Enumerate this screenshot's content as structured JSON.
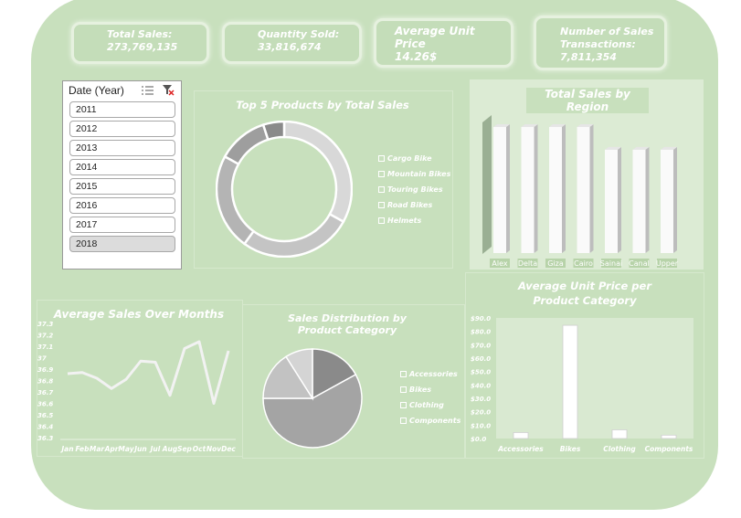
{
  "kpis": [
    {
      "label": "Total Sales:",
      "value": "273,769,135"
    },
    {
      "label": "Quantity Sold:",
      "value": "33,816,674"
    },
    {
      "label": "Average Unit Price",
      "value": "14.26$"
    },
    {
      "label": "Number of Sales Transactions:",
      "value": "7,811,354"
    }
  ],
  "slicer": {
    "title": "Date (Year)",
    "items": [
      "2011",
      "2012",
      "2013",
      "2014",
      "2015",
      "2016",
      "2017",
      "2018"
    ],
    "selected": "2018"
  },
  "charts": {
    "top5": {
      "title": "Top 5  Products by Total Sales",
      "legend": [
        "Cargo Bike",
        "Mountain Bikes",
        "Touring Bikes",
        "Road Bikes",
        "Helmets"
      ]
    },
    "region": {
      "title": "Total Sales by Region",
      "categories": [
        "Alex",
        "Delta",
        "Giza",
        "Cairo",
        "Sainai",
        "Canal",
        "Upper"
      ]
    },
    "months": {
      "title": "Average Sales Over Months",
      "yticks": [
        "37.3",
        "37.2",
        "37.1",
        "37",
        "36.9",
        "36.8",
        "36.7",
        "36.6",
        "36.5",
        "36.4",
        "36.3"
      ],
      "categories": [
        "Jan",
        "Feb",
        "Mar",
        "Apr",
        "May",
        "Jun",
        "Jul",
        "Aug",
        "Sep",
        "Oct",
        "Nov",
        "Dec"
      ]
    },
    "dist": {
      "title": "Sales Distribution by Product Category",
      "legend": [
        "Accessories",
        "Bikes",
        "Clothing",
        "Components"
      ]
    },
    "unitprice": {
      "title": "Average Unit Price per Product Category",
      "yticks": [
        "$90.0",
        "$80.0",
        "$70.0",
        "$60.0",
        "$50.0",
        "$40.0",
        "$30.0",
        "$20.0",
        "$10.0",
        "$0.0"
      ],
      "categories": [
        "Accessories",
        "Bikes",
        "Clothing",
        "Components"
      ]
    }
  },
  "chart_data": [
    {
      "type": "pie",
      "categories": [
        "Cargo Bike",
        "Mountain Bikes",
        "Touring Bikes",
        "Road Bikes",
        "Helmets"
      ],
      "values": [
        33,
        27,
        23,
        12,
        5
      ],
      "colors": [
        "#d8d8d8",
        "#c4c4c4",
        "#b4b4b4",
        "#9e9e9e",
        "#8a8a8a"
      ]
    },
    {
      "type": "bar",
      "categories": [
        "Alex",
        "Delta",
        "Giza",
        "Cairo",
        "Sainai",
        "Canal",
        "Upper"
      ],
      "values": [
        100,
        100,
        100,
        100,
        82,
        82,
        82
      ],
      "ylim": [
        0,
        100
      ]
    },
    {
      "type": "line",
      "categories": [
        "Jan",
        "Feb",
        "Mar",
        "Apr",
        "May",
        "Jun",
        "Jul",
        "Aug",
        "Sep",
        "Oct",
        "Nov",
        "Dec"
      ],
      "values": [
        36.86,
        36.87,
        36.82,
        36.73,
        36.81,
        36.97,
        36.96,
        36.67,
        37.08,
        37.14,
        36.6,
        37.06
      ],
      "ylim": [
        36.3,
        37.3
      ]
    },
    {
      "type": "pie",
      "categories": [
        "Accessories",
        "Bikes",
        "Clothing",
        "Components"
      ],
      "values": [
        17,
        58,
        16,
        9
      ],
      "colors": [
        "#8a8a8a",
        "#a4a4a4",
        "#c2c2c2",
        "#d4d4d4"
      ]
    },
    {
      "type": "bar",
      "categories": [
        "Accessories",
        "Bikes",
        "Clothing",
        "Components"
      ],
      "values": [
        4.5,
        84.5,
        6.5,
        2.5
      ],
      "ylim": [
        0,
        90
      ]
    }
  ]
}
